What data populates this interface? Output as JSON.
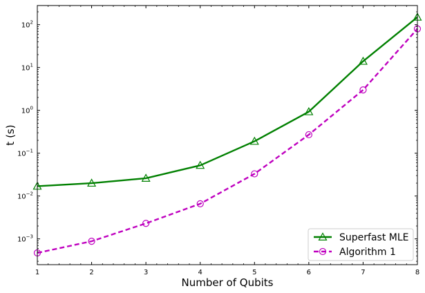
{
  "chart_data": {
    "type": "line",
    "xlabel": "Number of Qubits",
    "ylabel": "t (s)",
    "xlim": [
      1,
      8
    ],
    "ylim": [
      0.00025,
      280
    ],
    "yscale": "log",
    "grid": false,
    "legend_position": "bottom-right",
    "x_ticks": [
      "1",
      "2",
      "3",
      "4",
      "5",
      "6",
      "7",
      "8"
    ],
    "y_ticks": [
      {
        "base": "10",
        "exp": "−3",
        "value": 0.001
      },
      {
        "base": "10",
        "exp": "−2",
        "value": 0.01
      },
      {
        "base": "10",
        "exp": "−1",
        "value": 0.1
      },
      {
        "base": "10",
        "exp": "0",
        "value": 1
      },
      {
        "base": "10",
        "exp": "1",
        "value": 10
      },
      {
        "base": "10",
        "exp": "2",
        "value": 100
      }
    ],
    "x": [
      1,
      2,
      3,
      4,
      5,
      6,
      7,
      8
    ],
    "series": [
      {
        "name": "Superfast MLE",
        "color": "#008000",
        "line_style": "solid",
        "marker": "triangle-up",
        "values": [
          0.017,
          0.02,
          0.026,
          0.052,
          0.19,
          0.93,
          14,
          150
        ]
      },
      {
        "name": "Algorithm 1",
        "color": "#bf00bf",
        "line_style": "dashed",
        "marker": "circle",
        "values": [
          0.00047,
          0.00088,
          0.0023,
          0.0066,
          0.033,
          0.27,
          3,
          80
        ]
      }
    ]
  }
}
